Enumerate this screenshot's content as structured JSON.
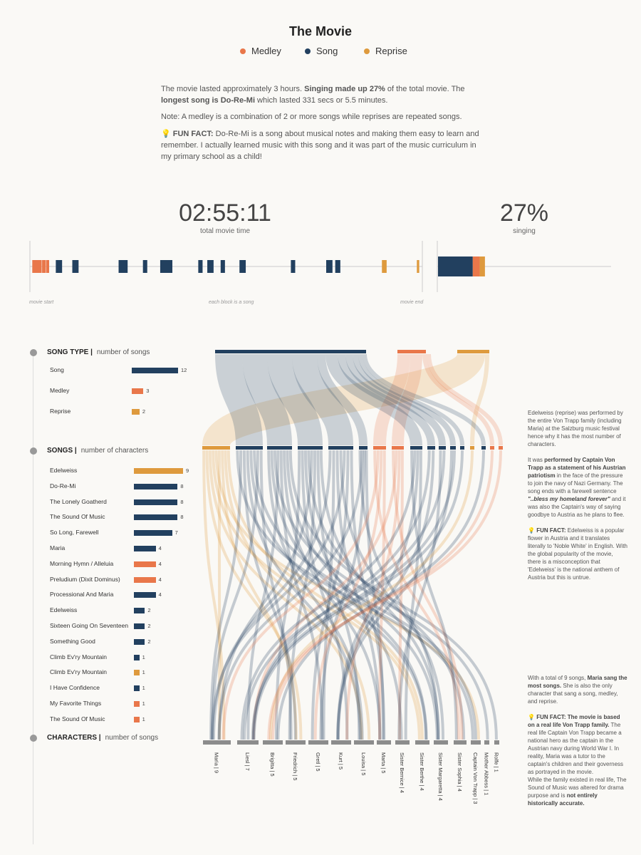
{
  "header": {
    "title": "The Movie",
    "legend": [
      {
        "label": "Medley",
        "color": "#e9774a"
      },
      {
        "label": "Song",
        "color": "#22405f"
      },
      {
        "label": "Reprise",
        "color": "#de9a3d"
      }
    ]
  },
  "intro": {
    "p1_a": "The movie lasted approximately 3 hours. ",
    "p1_b": "Singing made up 27%",
    "p1_c": " of the total movie. The ",
    "p1_d": "longest song is Do-Re-Mi",
    "p1_e": " which lasted 331 secs or 5.5 minutes.",
    "p2": "Note: A medley is a combination of 2 or more songs while reprises are repeated songs.",
    "p3_icon": "💡",
    "p3_a": "FUN FACT:",
    "p3_b": " Do-Re-Mi is a song about musical notes and making them easy to learn and remember. I actually learned music with this song and it was part of the music curriculum in my primary school as a child!"
  },
  "stats": {
    "movie_time": "02:55:11",
    "movie_time_label": "total movie time",
    "singing_pct": "27%",
    "singing_label": "singing"
  },
  "timeline": {
    "start_label": "movie start",
    "mid_label": "each block is a song",
    "end_label": "movie end",
    "blocks": [
      {
        "start": 0.006,
        "dur": 0.024,
        "type": "Medley"
      },
      {
        "start": 0.031,
        "dur": 0.009,
        "type": "Medley"
      },
      {
        "start": 0.041,
        "dur": 0.008,
        "type": "Medley"
      },
      {
        "start": 0.066,
        "dur": 0.016,
        "type": "Song"
      },
      {
        "start": 0.108,
        "dur": 0.016,
        "type": "Song"
      },
      {
        "start": 0.226,
        "dur": 0.023,
        "type": "Song"
      },
      {
        "start": 0.288,
        "dur": 0.011,
        "type": "Song"
      },
      {
        "start": 0.332,
        "dur": 0.031,
        "type": "Song"
      },
      {
        "start": 0.429,
        "dur": 0.011,
        "type": "Song"
      },
      {
        "start": 0.452,
        "dur": 0.016,
        "type": "Song"
      },
      {
        "start": 0.486,
        "dur": 0.011,
        "type": "Song"
      },
      {
        "start": 0.534,
        "dur": 0.016,
        "type": "Song"
      },
      {
        "start": 0.665,
        "dur": 0.011,
        "type": "Song"
      },
      {
        "start": 0.755,
        "dur": 0.016,
        "type": "Song"
      },
      {
        "start": 0.778,
        "dur": 0.013,
        "type": "Song"
      },
      {
        "start": 0.897,
        "dur": 0.012,
        "type": "Reprise"
      },
      {
        "start": 0.986,
        "dur": 0.006,
        "type": "Reprise"
      }
    ],
    "summary": [
      {
        "type": "Song",
        "share": 0.2
      },
      {
        "type": "Medley",
        "share": 0.04
      },
      {
        "type": "Reprise",
        "share": 0.03
      }
    ]
  },
  "chart_data": {
    "type": "sankey",
    "song_type": {
      "heading": "SONG TYPE |",
      "subheading": "number of songs",
      "max": 12,
      "items": [
        {
          "label": "Song",
          "value": 12,
          "type": "Song"
        },
        {
          "label": "Medley",
          "value": 3,
          "type": "Medley"
        },
        {
          "label": "Reprise",
          "value": 2,
          "type": "Reprise"
        }
      ]
    },
    "songs": {
      "heading": "SONGS |",
      "subheading": "number of characters",
      "max": 9,
      "items": [
        {
          "label": "Edelweiss",
          "value": 9,
          "type": "Reprise"
        },
        {
          "label": "Do-Re-Mi",
          "value": 8,
          "type": "Song"
        },
        {
          "label": "The Lonely Goatherd",
          "value": 8,
          "type": "Song"
        },
        {
          "label": "The Sound Of Music",
          "value": 8,
          "type": "Song"
        },
        {
          "label": "So Long, Farewell",
          "value": 7,
          "type": "Song"
        },
        {
          "label": "Maria",
          "value": 4,
          "type": "Song"
        },
        {
          "label": "Morning Hymn / Alleluia",
          "value": 4,
          "type": "Medley"
        },
        {
          "label": "Preludium (Dixit Dominus)",
          "value": 4,
          "type": "Medley"
        },
        {
          "label": "Processional And Maria",
          "value": 4,
          "type": "Song"
        },
        {
          "label": "Edelweiss",
          "value": 2,
          "type": "Song"
        },
        {
          "label": "Sixteen Going On Seventeen",
          "value": 2,
          "type": "Song"
        },
        {
          "label": "Something Good",
          "value": 2,
          "type": "Song"
        },
        {
          "label": "Climb Ev'ry Mountain",
          "value": 1,
          "type": "Song"
        },
        {
          "label": "Climb Ev'ry Mountain",
          "value": 1,
          "type": "Reprise"
        },
        {
          "label": "I Have Confidence",
          "value": 1,
          "type": "Song"
        },
        {
          "label": "My Favorite Things",
          "value": 1,
          "type": "Medley"
        },
        {
          "label": "The Sound Of Music",
          "value": 1,
          "type": "Medley"
        }
      ]
    },
    "characters": {
      "heading": "CHARACTERS |",
      "subheading": "number of songs",
      "items": [
        {
          "name": "Maria",
          "value": 9
        },
        {
          "name": "Liesl",
          "value": 7
        },
        {
          "name": "Brigitta",
          "value": 5
        },
        {
          "name": "Friedrich",
          "value": 5
        },
        {
          "name": "Gretl",
          "value": 5
        },
        {
          "name": "Kurt",
          "value": 5
        },
        {
          "name": "Louisa",
          "value": 5
        },
        {
          "name": "Marta",
          "value": 5
        },
        {
          "name": "Sister Bernice",
          "value": 4
        },
        {
          "name": "Sister Berthe",
          "value": 4
        },
        {
          "name": "Sister Margaretta",
          "value": 4
        },
        {
          "name": "Sister Sophia",
          "value": 4
        },
        {
          "name": "Captain Von Trapp",
          "value": 3
        },
        {
          "name": "Mother Abbess",
          "value": 1
        },
        {
          "name": "Rolfe",
          "value": 1
        }
      ]
    }
  },
  "notes": {
    "n1_p1": "Edelweiss (reprise) was performed by the entire Von Trapp family (including Maria) at the Salzburg music festival hence why it has the most number of characters.",
    "n1_p2_a": "It was ",
    "n1_p2_b": "performed by Captain Von Trapp as a statement of his Austrian patriotism",
    "n1_p2_c": " in the face of the pressure to join the navy of Nazi Germany. The song ends with a farewell sentence ",
    "n1_p2_d": "\"..bless my homeland forever\"",
    "n1_p2_e": " and it was also the Captain's way of saying goodbye to Austria as he plans to flee.",
    "n1_p3_a": "FUN FACT:",
    "n1_p3_b": " Edelweiss is a popular flower in Austria and it translates literally to 'Noble White' in English. With the global popularity of the movie, there is a misconception that 'Edelweiss' is the national anthem of Austria but this is untrue.",
    "n2_p1_a": "With a total of 9 songs, ",
    "n2_p1_b": "Maria sang the most songs.",
    "n2_p1_c": " She is also the only character that sang a song, medley, and reprise.",
    "n2_p2_a": "FUN FACT: The movie is based on a real life Von Trapp family.",
    "n2_p2_b": " The real life Captain Von Trapp became a national hero as the captain in the Austrian navy during World War I. In reality, Maria was a tutor to the captain's children and their governess as portrayed in the movie.",
    "n2_p2_c": "While the family existed in real life, The Sound of Music was altered for drama purpose and is ",
    "n2_p2_d": "not entirely historically accurate.",
    "bulb": "💡"
  }
}
